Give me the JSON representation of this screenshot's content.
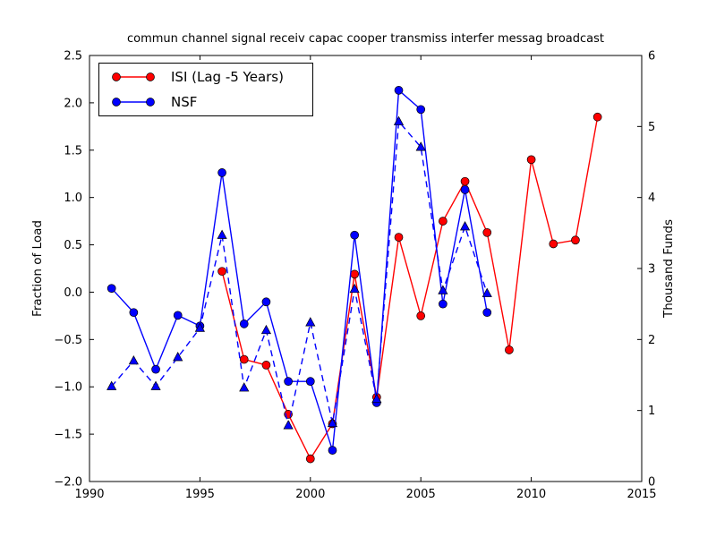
{
  "figure": {
    "background_color": "#ffffff",
    "axis_color": "#000000"
  },
  "legend": {
    "position": "upper left",
    "items": [
      {
        "label": "ISI (Lag -5 Years)",
        "color": "#ff0000",
        "marker": "circle",
        "linestyle": "solid"
      },
      {
        "label": "NSF",
        "color": "#0000ff",
        "marker": "circle",
        "linestyle": "solid"
      }
    ]
  },
  "chart_data": {
    "type": "line",
    "title": "commun channel signal receiv capac cooper transmiss interfer messag broadcast",
    "grid": false,
    "legend_position": "upper left",
    "x_axis": {
      "label": "",
      "range": [
        1990,
        2015
      ],
      "ticks": [
        1990,
        1995,
        2000,
        2005,
        2010,
        2015
      ],
      "tick_labels": [
        "1990",
        "1995",
        "2000",
        "2005",
        "2010",
        "2015"
      ]
    },
    "y_axis_left": {
      "label": "Fraction of Load",
      "range": [
        -2.0,
        2.5
      ],
      "ticks": [
        2.5,
        2.0,
        1.5,
        1.0,
        0.5,
        0.0,
        -0.5,
        -1.0,
        -1.5,
        -2.0
      ],
      "tick_labels": [
        "2.5",
        "2.0",
        "1.5",
        "1.0",
        "0.5",
        "0.0",
        "−0.5",
        "−1.0",
        "−1.5",
        "−2.0"
      ]
    },
    "y_axis_right": {
      "label": "Thousand Funds",
      "range": [
        0,
        6
      ],
      "ticks": [
        6,
        5,
        4,
        3,
        2,
        1,
        0
      ],
      "tick_labels": [
        "6",
        "5",
        "4",
        "3",
        "2",
        "1",
        "0"
      ]
    },
    "series": [
      {
        "name": "ISI (Lag -5 Years)",
        "color": "#ff0000",
        "linestyle": "solid",
        "marker": "circle",
        "axis": "left",
        "in_legend": true,
        "x": [
          1996,
          1997,
          1998,
          1999,
          2000,
          2001,
          2002,
          2003,
          2004,
          2005,
          2006,
          2007,
          2008,
          2009,
          2010,
          2011,
          2012,
          2013
        ],
        "y": [
          0.22,
          -0.71,
          -0.77,
          -1.29,
          -1.76,
          -1.39,
          0.19,
          -1.11,
          0.58,
          -0.25,
          0.75,
          1.17,
          0.63,
          -0.61,
          1.4,
          0.51,
          0.55,
          1.85
        ]
      },
      {
        "name": "NSF",
        "color": "#0000ff",
        "linestyle": "solid",
        "marker": "circle",
        "axis": "right",
        "in_legend": true,
        "x": [
          1991,
          1992,
          1993,
          1994,
          1995,
          1996,
          1997,
          1998,
          1999,
          2000,
          2001,
          2002,
          2003,
          2004,
          2005,
          2006,
          2007,
          2008
        ],
        "y": [
          2.72,
          2.38,
          1.58,
          2.34,
          2.19,
          4.35,
          2.22,
          2.53,
          1.41,
          1.41,
          0.44,
          3.47,
          1.11,
          5.51,
          5.24,
          2.5,
          4.11,
          2.38
        ]
      },
      {
        "name": "NSF (dashed, unlabeled)",
        "color": "#0000ff",
        "linestyle": "dashed",
        "marker": "triangle",
        "axis": "right",
        "in_legend": false,
        "x": [
          1991,
          1992,
          1993,
          1994,
          1995,
          1996,
          1997,
          1998,
          1999,
          2000,
          2001,
          2002,
          2003,
          2004,
          2005,
          2006,
          2007,
          2008
        ],
        "y": [
          1.34,
          1.7,
          1.34,
          1.75,
          2.16,
          3.47,
          1.32,
          2.13,
          0.79,
          2.24,
          0.82,
          2.71,
          1.16,
          5.07,
          4.71,
          2.69,
          3.59,
          2.65
        ]
      }
    ]
  }
}
